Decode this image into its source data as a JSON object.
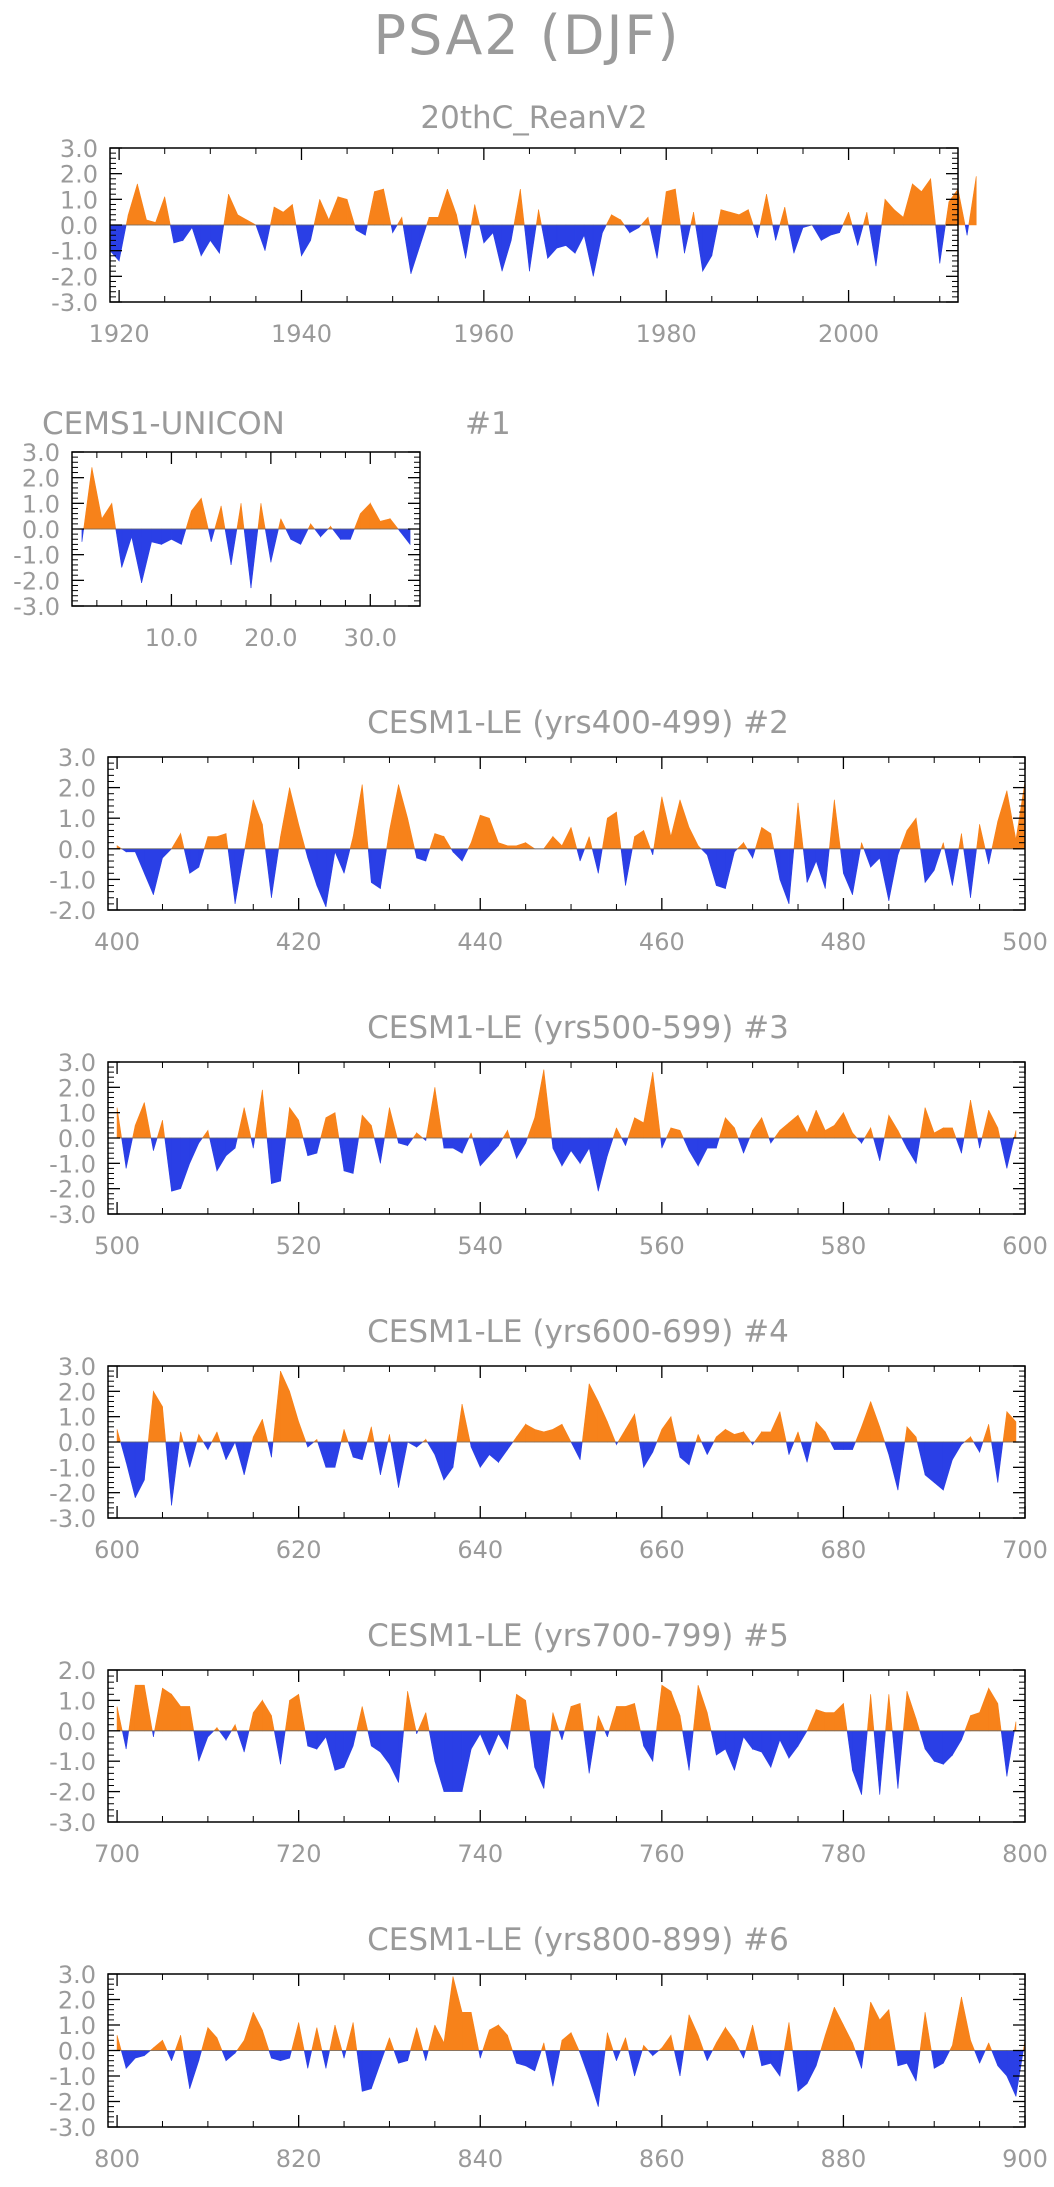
{
  "title": "PSA2 (DJF)",
  "colors": {
    "positive": "#f7821a",
    "negative": "#2a3fe6",
    "text": "#9a9a9a",
    "axis": "#000000"
  },
  "chart_data": [
    {
      "type": "area",
      "title": "20thC_ReanV2",
      "xticks": [
        1920,
        1940,
        1960,
        1980,
        2000
      ],
      "yticks": [
        -3.0,
        -2.0,
        -1.0,
        0.0,
        1.0,
        2.0,
        3.0
      ],
      "ytick_labels": [
        "-3.0",
        "-2.0",
        "-1.0",
        "0.0",
        "1.0",
        "2.0",
        "3.0"
      ],
      "xlim": [
        1919,
        2012
      ],
      "ylim": [
        -3.0,
        3.0
      ],
      "x_start": 1919,
      "values": [
        -1.0,
        -1.4,
        0.4,
        1.6,
        0.2,
        0.1,
        1.1,
        -0.7,
        -0.6,
        -0.1,
        -1.2,
        -0.6,
        -1.1,
        1.2,
        0.4,
        0.2,
        0.0,
        -1.0,
        0.7,
        0.5,
        0.8,
        -1.2,
        -0.6,
        1.0,
        0.2,
        1.1,
        1.0,
        -0.2,
        -0.4,
        1.3,
        1.4,
        -0.3,
        0.3,
        -1.9,
        -0.8,
        0.3,
        0.3,
        1.4,
        0.4,
        -1.3,
        0.8,
        -0.7,
        -0.3,
        -1.8,
        -0.6,
        1.4,
        -1.8,
        0.6,
        -1.3,
        -0.9,
        -0.8,
        -1.1,
        -0.4,
        -2.0,
        -0.3,
        0.4,
        0.2,
        -0.3,
        -0.1,
        0.3,
        -1.3,
        1.3,
        1.4,
        -1.1,
        0.5,
        -1.8,
        -1.2,
        0.6,
        0.5,
        0.4,
        0.6,
        -0.5,
        1.2,
        -0.6,
        0.7,
        -1.1,
        -0.1,
        0.0,
        -0.6,
        -0.4,
        -0.3,
        0.5,
        -0.8,
        0.5,
        -1.6,
        1.0,
        0.6,
        0.3,
        1.6,
        1.3,
        1.8,
        -1.5,
        0.9,
        1.4,
        -0.4,
        1.9
      ]
    },
    {
      "type": "area",
      "title": "CEMS1-UNICON",
      "label": "#1",
      "xticks": [
        10,
        20,
        30
      ],
      "xtick_labels": [
        "10.0",
        "20.0",
        "30.0"
      ],
      "yticks": [
        -3.0,
        -2.0,
        -1.0,
        0.0,
        1.0,
        2.0,
        3.0
      ],
      "ytick_labels": [
        "-3.0",
        "-2.0",
        "-1.0",
        "0.0",
        "1.0",
        "2.0",
        "3.0"
      ],
      "xlim": [
        0,
        35
      ],
      "ylim": [
        -3.0,
        3.0
      ],
      "x_start": 1,
      "values": [
        -0.5,
        2.4,
        0.4,
        1.0,
        -1.5,
        -0.3,
        -2.1,
        -0.5,
        -0.6,
        -0.4,
        -0.6,
        0.7,
        1.2,
        -0.5,
        0.9,
        -1.4,
        1.0,
        -2.3,
        1.0,
        -1.3,
        0.4,
        -0.4,
        -0.6,
        0.2,
        -0.3,
        0.1,
        -0.4,
        -0.4,
        0.6,
        1.0,
        0.3,
        0.4,
        -0.1,
        -0.6
      ]
    },
    {
      "type": "area",
      "title": "CESM1-LE (yrs400-499)",
      "label": "#2",
      "xticks": [
        400,
        420,
        440,
        460,
        480,
        500
      ],
      "yticks": [
        -2.0,
        -1.0,
        0.0,
        1.0,
        2.0,
        3.0
      ],
      "ytick_labels": [
        "-2.0",
        "-1.0",
        "0.0",
        "1.0",
        "2.0",
        "3.0"
      ],
      "xlim": [
        399,
        500
      ],
      "ylim": [
        -2.0,
        3.0
      ],
      "x_start": 400,
      "values": [
        0.1,
        -0.1,
        -0.1,
        -0.8,
        -1.5,
        -0.3,
        0.0,
        0.5,
        -0.8,
        -0.6,
        0.4,
        0.4,
        0.5,
        -1.8,
        -0.1,
        1.6,
        0.8,
        -1.6,
        0.4,
        2.0,
        0.8,
        -0.3,
        -1.2,
        -1.9,
        -0.1,
        -0.8,
        0.4,
        2.1,
        -1.1,
        -1.3,
        0.6,
        2.1,
        1.0,
        -0.3,
        -0.4,
        0.5,
        0.4,
        -0.1,
        -0.4,
        0.2,
        1.1,
        1.0,
        0.2,
        0.1,
        0.1,
        0.2,
        0.0,
        0.0,
        0.4,
        0.1,
        0.7,
        -0.4,
        0.4,
        -0.8,
        1.0,
        1.2,
        -1.2,
        0.4,
        0.6,
        -0.2,
        1.7,
        0.4,
        1.6,
        0.7,
        0.1,
        -0.2,
        -1.2,
        -1.3,
        -0.1,
        0.2,
        -0.3,
        0.7,
        0.5,
        -1.0,
        -1.8,
        1.5,
        -1.1,
        -0.4,
        -1.3,
        1.6,
        -0.8,
        -1.5,
        0.2,
        -0.6,
        -0.3,
        -1.7,
        -0.2,
        0.6,
        1.0,
        -1.1,
        -0.7,
        0.2,
        -1.2,
        0.5,
        -1.6,
        0.8,
        -0.5,
        0.9,
        1.9,
        0.3,
        2.2
      ]
    },
    {
      "type": "area",
      "title": "CESM1-LE (yrs500-599)",
      "label": "#3",
      "xticks": [
        500,
        520,
        540,
        560,
        580,
        600
      ],
      "yticks": [
        -3.0,
        -2.0,
        -1.0,
        0.0,
        1.0,
        2.0,
        3.0
      ],
      "ytick_labels": [
        "-3.0",
        "-2.0",
        "-1.0",
        "0.0",
        "1.0",
        "2.0",
        "3.0"
      ],
      "xlim": [
        499,
        600
      ],
      "ylim": [
        -3.0,
        3.0
      ],
      "x_start": 500,
      "values": [
        1.2,
        -1.2,
        0.5,
        1.4,
        -0.5,
        0.7,
        -2.1,
        -2.0,
        -1.0,
        -0.2,
        0.3,
        -1.3,
        -0.7,
        -0.4,
        1.2,
        -0.4,
        1.9,
        -1.8,
        -1.7,
        1.2,
        0.7,
        -0.7,
        -0.6,
        0.8,
        1.0,
        -1.3,
        -1.4,
        0.9,
        0.5,
        -1.0,
        1.2,
        -0.2,
        -0.3,
        0.2,
        -0.1,
        2.0,
        -0.4,
        -0.4,
        -0.6,
        0.2,
        -1.1,
        -0.7,
        -0.3,
        0.3,
        -0.8,
        -0.2,
        0.8,
        2.7,
        -0.4,
        -1.1,
        -0.5,
        -1.0,
        -0.4,
        -2.1,
        -0.7,
        0.4,
        -0.3,
        0.8,
        0.6,
        2.6,
        -0.4,
        0.4,
        0.3,
        -0.5,
        -1.1,
        -0.4,
        -0.4,
        0.8,
        0.4,
        -0.6,
        0.3,
        0.8,
        -0.2,
        0.3,
        0.6,
        0.9,
        0.2,
        1.1,
        0.3,
        0.5,
        1.0,
        0.2,
        -0.2,
        0.4,
        -0.9,
        0.9,
        0.3,
        -0.4,
        -1.0,
        1.2,
        0.2,
        0.4,
        0.4,
        -0.6,
        1.5,
        -0.4,
        1.1,
        0.4,
        -1.2,
        0.3
      ]
    },
    {
      "type": "area",
      "title": "CESM1-LE (yrs600-699)",
      "label": "#4",
      "xticks": [
        600,
        620,
        640,
        660,
        680,
        700
      ],
      "yticks": [
        -3.0,
        -2.0,
        -1.0,
        0.0,
        1.0,
        2.0,
        3.0
      ],
      "ytick_labels": [
        "-3.0",
        "-2.0",
        "-1.0",
        "0.0",
        "1.0",
        "2.0",
        "3.0"
      ],
      "xlim": [
        599,
        700
      ],
      "ylim": [
        -3.0,
        3.0
      ],
      "x_start": 600,
      "values": [
        0.5,
        -0.8,
        -2.2,
        -1.5,
        2.0,
        1.4,
        -2.5,
        0.4,
        -1.0,
        0.3,
        -0.3,
        0.4,
        -0.7,
        0.0,
        -1.3,
        0.2,
        0.9,
        -0.6,
        2.8,
        2.0,
        0.8,
        -0.2,
        0.1,
        -1.0,
        -1.0,
        0.5,
        -0.6,
        -0.7,
        0.6,
        -1.3,
        0.3,
        -1.8,
        0.0,
        -0.2,
        0.1,
        -0.5,
        -1.5,
        -1.0,
        1.5,
        -0.2,
        -1.0,
        -0.5,
        -0.8,
        -0.3,
        0.2,
        0.7,
        0.5,
        0.4,
        0.5,
        0.7,
        0.0,
        -0.7,
        2.3,
        1.6,
        0.8,
        -0.1,
        0.5,
        1.1,
        -1.0,
        -0.4,
        0.5,
        1.0,
        -0.6,
        -0.9,
        0.3,
        -0.5,
        0.2,
        0.5,
        0.3,
        0.4,
        -0.1,
        0.4,
        0.4,
        1.2,
        -0.5,
        0.4,
        -0.8,
        0.8,
        0.4,
        -0.3,
        -0.3,
        -0.3,
        0.6,
        1.6,
        0.6,
        -0.5,
        -1.9,
        0.6,
        0.2,
        -1.3,
        -1.6,
        -1.9,
        -0.7,
        -0.1,
        0.2,
        -0.4,
        0.7,
        -1.6,
        1.2,
        0.8
      ]
    },
    {
      "type": "area",
      "title": "CESM1-LE (yrs700-799)",
      "label": "#5",
      "xticks": [
        700,
        720,
        740,
        760,
        780,
        800
      ],
      "yticks": [
        -3.0,
        -2.0,
        -1.0,
        0.0,
        1.0,
        2.0
      ],
      "ytick_labels": [
        "-3.0",
        "-2.0",
        "-1.0",
        "0.0",
        "1.0",
        "2.0"
      ],
      "xlim": [
        699,
        800
      ],
      "ylim": [
        -3.0,
        2.0
      ],
      "x_start": 700,
      "values": [
        0.8,
        -0.6,
        1.5,
        1.5,
        -0.2,
        1.4,
        1.2,
        0.8,
        0.8,
        -1.0,
        -0.2,
        0.1,
        -0.3,
        0.2,
        -0.7,
        0.6,
        1.0,
        0.5,
        -1.1,
        1.0,
        1.2,
        -0.5,
        -0.6,
        -0.2,
        -1.3,
        -1.2,
        -0.5,
        0.8,
        -0.5,
        -0.7,
        -1.1,
        -1.7,
        1.3,
        -0.1,
        0.6,
        -1.0,
        -2.0,
        -2.0,
        -2.0,
        -0.6,
        -0.1,
        -0.8,
        -0.1,
        -0.6,
        1.2,
        1.0,
        -1.2,
        -1.9,
        0.6,
        -0.3,
        0.8,
        0.9,
        -1.4,
        0.5,
        -0.2,
        0.8,
        0.8,
        0.9,
        -0.5,
        -1.0,
        1.5,
        1.3,
        0.5,
        -1.3,
        1.5,
        0.6,
        -0.8,
        -0.6,
        -1.3,
        -0.2,
        -0.6,
        -0.7,
        -1.2,
        -0.3,
        -0.9,
        -0.5,
        0.0,
        0.7,
        0.6,
        0.6,
        0.9,
        -1.3,
        -2.1,
        1.2,
        -2.1,
        1.2,
        -1.9,
        1.3,
        0.4,
        -0.6,
        -1.0,
        -1.1,
        -0.8,
        -0.3,
        0.5,
        0.6,
        1.4,
        0.9,
        -1.5,
        0.3
      ]
    },
    {
      "type": "area",
      "title": "CESM1-LE (yrs800-899)",
      "label": "#6",
      "xticks": [
        800,
        820,
        840,
        860,
        880,
        900
      ],
      "yticks": [
        -3.0,
        -2.0,
        -1.0,
        0.0,
        1.0,
        2.0,
        3.0
      ],
      "ytick_labels": [
        "-3.0",
        "-2.0",
        "-1.0",
        "0.0",
        "1.0",
        "2.0",
        "3.0"
      ],
      "xlim": [
        799,
        900
      ],
      "ylim": [
        -3.0,
        3.0
      ],
      "x_start": 800,
      "values": [
        0.6,
        -0.7,
        -0.3,
        -0.2,
        0.1,
        0.4,
        -0.4,
        0.6,
        -1.5,
        -0.4,
        0.9,
        0.5,
        -0.4,
        -0.1,
        0.4,
        1.5,
        0.8,
        -0.3,
        -0.4,
        -0.3,
        1.1,
        -0.7,
        0.9,
        -0.7,
        1.0,
        -0.3,
        1.1,
        -1.6,
        -1.5,
        -0.5,
        0.5,
        -0.5,
        -0.4,
        0.9,
        -0.4,
        1.0,
        0.3,
        2.9,
        1.5,
        1.5,
        -0.3,
        0.8,
        1.0,
        0.6,
        -0.5,
        -0.6,
        -0.8,
        0.3,
        -1.4,
        0.4,
        0.7,
        -0.1,
        -1.1,
        -2.2,
        0.7,
        -0.4,
        0.5,
        -1.0,
        0.2,
        -0.2,
        0.1,
        0.6,
        -1.0,
        1.4,
        0.6,
        -0.4,
        0.3,
        0.9,
        0.4,
        -0.3,
        1.0,
        -0.6,
        -0.5,
        -1.0,
        1.1,
        -1.6,
        -1.3,
        -0.6,
        0.6,
        1.7,
        1.0,
        0.3,
        -0.7,
        1.9,
        1.2,
        1.6,
        -0.6,
        -0.5,
        -1.2,
        1.5,
        -0.7,
        -0.5,
        0.2,
        2.1,
        0.4,
        -0.5,
        0.3,
        -0.6,
        -1.0,
        -1.8,
        0.4
      ]
    }
  ]
}
